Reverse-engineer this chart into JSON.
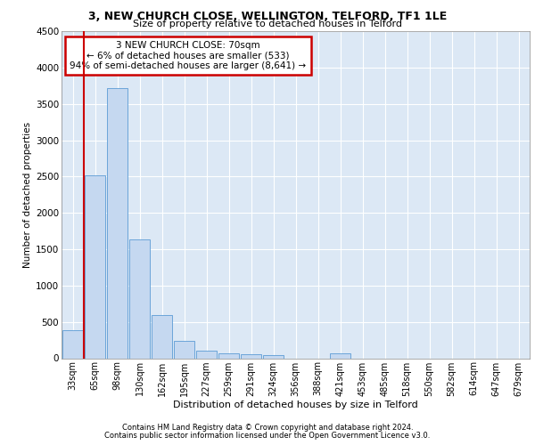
{
  "title1": "3, NEW CHURCH CLOSE, WELLINGTON, TELFORD, TF1 1LE",
  "title2": "Size of property relative to detached houses in Telford",
  "xlabel": "Distribution of detached houses by size in Telford",
  "ylabel": "Number of detached properties",
  "bar_labels": [
    "33sqm",
    "65sqm",
    "98sqm",
    "130sqm",
    "162sqm",
    "195sqm",
    "227sqm",
    "259sqm",
    "291sqm",
    "324sqm",
    "356sqm",
    "388sqm",
    "421sqm",
    "453sqm",
    "485sqm",
    "518sqm",
    "550sqm",
    "582sqm",
    "614sqm",
    "647sqm",
    "679sqm"
  ],
  "bar_values": [
    380,
    2520,
    3720,
    1640,
    600,
    240,
    105,
    65,
    55,
    40,
    0,
    0,
    65,
    0,
    0,
    0,
    0,
    0,
    0,
    0,
    0
  ],
  "bar_color": "#c5d8f0",
  "bar_edge_color": "#5b9bd5",
  "vline_color": "#cc0000",
  "annotation_line1": "3 NEW CHURCH CLOSE: 70sqm",
  "annotation_line2": "← 6% of detached houses are smaller (533)",
  "annotation_line3": "94% of semi-detached houses are larger (8,641) →",
  "annotation_box_color": "#cc0000",
  "ylim": [
    0,
    4500
  ],
  "yticks": [
    0,
    500,
    1000,
    1500,
    2000,
    2500,
    3000,
    3500,
    4000,
    4500
  ],
  "footer1": "Contains HM Land Registry data © Crown copyright and database right 2024.",
  "footer2": "Contains public sector information licensed under the Open Government Licence v3.0.",
  "plot_bg_color": "#dce8f5"
}
